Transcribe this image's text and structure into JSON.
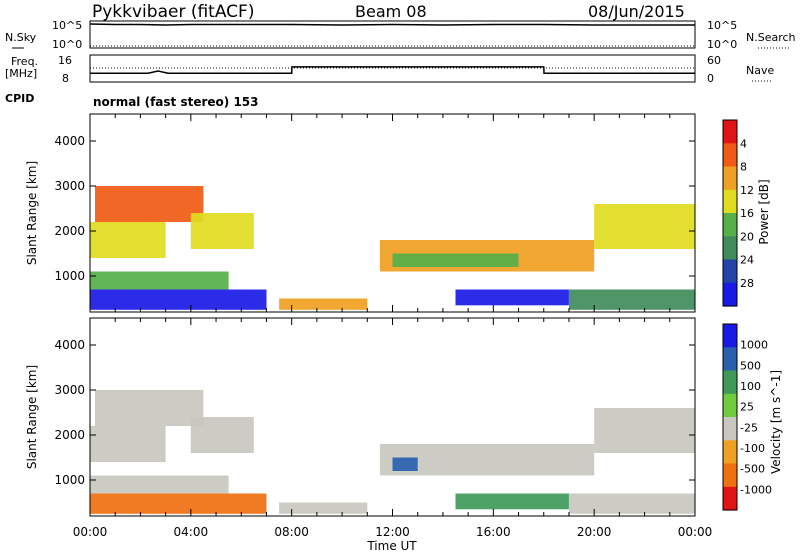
{
  "header": {
    "title": "Pykkvibaer (fitACF)",
    "beam": "Beam 08",
    "date": "08/Jun/2015"
  },
  "cpid_label": "CPID",
  "cpid_text": "normal (fast stereo) 153",
  "colors": {
    "scale": [
      "#1a1ae6",
      "#2244aa",
      "#3f8c5a",
      "#56b04a",
      "#e0dc1e",
      "#f0a020",
      "#f05a14",
      "#e01414"
    ]
  },
  "chart_data": [
    {
      "type": "line",
      "panel": "nsky",
      "left_labels": [
        "N.Sky"
      ],
      "right_labels": [
        "N.Search"
      ],
      "left_ticks": [
        "10^5",
        "10^0"
      ],
      "right_ticks": [
        "10^5",
        "10^0"
      ],
      "series": [
        {
          "name": "N.Sky",
          "x": [
            0,
            1,
            2,
            3,
            4,
            6,
            8,
            10,
            12,
            14,
            16,
            18,
            20,
            22,
            24
          ],
          "y": [
            4.6,
            4.5,
            4.5,
            4.4,
            4.5,
            4.5,
            4.5,
            4.4,
            4.5,
            4.4,
            4.5,
            4.5,
            4.4,
            4.4,
            4.4
          ]
        },
        {
          "name": "N.Search",
          "x": [
            0,
            4,
            8,
            12,
            16,
            20,
            24
          ],
          "y": [
            0.2,
            0.2,
            0.2,
            0.2,
            0.2,
            0.2,
            0.2
          ]
        }
      ]
    },
    {
      "type": "line",
      "panel": "freq",
      "left_labels": [
        "Freq.",
        "[MHz]"
      ],
      "right_labels": [
        "Nave"
      ],
      "left_ticks": [
        "16",
        "8"
      ],
      "right_ticks": [
        "60",
        "0"
      ],
      "series": [
        {
          "name": "Freq.",
          "x": [
            0,
            2.3,
            2.7,
            3.1,
            8,
            8.01,
            18,
            18.01,
            24
          ],
          "y": [
            10.5,
            10.5,
            11.2,
            10.5,
            10.5,
            12.5,
            12.5,
            10.5,
            10.5
          ]
        }
      ]
    },
    {
      "type": "heatmap",
      "panel": "power",
      "ylabel": "Slant Range [km]",
      "yticks": [
        1000,
        2000,
        3000,
        4000
      ],
      "ylim": [
        200,
        4600
      ],
      "xlim": [
        0,
        24
      ],
      "colorbar_label": "Power [dB]",
      "colorbar_ticks": [
        "4",
        "8",
        "12",
        "16",
        "20",
        "24",
        "28"
      ],
      "regions": [
        {
          "x": [
            0.0,
            7.0
          ],
          "y": [
            250,
            700
          ],
          "level": 7
        },
        {
          "x": [
            0.0,
            5.5
          ],
          "y": [
            700,
            1100
          ],
          "level": 4
        },
        {
          "x": [
            0.0,
            3.0
          ],
          "y": [
            1400,
            2200
          ],
          "level": 3
        },
        {
          "x": [
            0.2,
            4.5
          ],
          "y": [
            2200,
            3000
          ],
          "level": 1
        },
        {
          "x": [
            4.0,
            6.5
          ],
          "y": [
            1600,
            2400
          ],
          "level": 3
        },
        {
          "x": [
            7.5,
            11.0
          ],
          "y": [
            250,
            500
          ],
          "level": 2
        },
        {
          "x": [
            11.5,
            20.0
          ],
          "y": [
            1100,
            1800
          ],
          "level": 2
        },
        {
          "x": [
            12.0,
            17.0
          ],
          "y": [
            1200,
            1500
          ],
          "level": 4
        },
        {
          "x": [
            14.5,
            19.0
          ],
          "y": [
            350,
            700
          ],
          "level": 7
        },
        {
          "x": [
            19.0,
            24.0
          ],
          "y": [
            250,
            700
          ],
          "level": 5
        },
        {
          "x": [
            20.0,
            24.0
          ],
          "y": [
            1600,
            2600
          ],
          "level": 3
        }
      ]
    },
    {
      "type": "heatmap",
      "panel": "velocity",
      "ylabel": "Slant Range [km]",
      "yticks": [
        1000,
        2000,
        3000,
        4000
      ],
      "ylim": [
        200,
        4600
      ],
      "xlim": [
        0,
        24
      ],
      "xlabel": "Time UT",
      "xticks": [
        "00:00",
        "04:00",
        "08:00",
        "12:00",
        "16:00",
        "20:00",
        "00:00"
      ],
      "colorbar_label": "Velocity [m s^-1]",
      "colorbar_ticks": [
        "1000",
        "500",
        "100",
        "25",
        "-25",
        "-100",
        "-500",
        "-1000"
      ],
      "regions": [
        {
          "x": [
            0.0,
            7.0
          ],
          "y": [
            250,
            700
          ],
          "level": 6
        },
        {
          "x": [
            0.0,
            5.5
          ],
          "y": [
            700,
            1100
          ],
          "level": 4
        },
        {
          "x": [
            0.0,
            3.0
          ],
          "y": [
            1400,
            2200
          ],
          "level": 4
        },
        {
          "x": [
            0.2,
            4.5
          ],
          "y": [
            2200,
            3000
          ],
          "level": 4
        },
        {
          "x": [
            4.0,
            6.5
          ],
          "y": [
            1600,
            2400
          ],
          "level": 4
        },
        {
          "x": [
            7.5,
            11.0
          ],
          "y": [
            250,
            500
          ],
          "level": 4
        },
        {
          "x": [
            11.5,
            20.0
          ],
          "y": [
            1100,
            1800
          ],
          "level": 4
        },
        {
          "x": [
            12.0,
            13.0
          ],
          "y": [
            1200,
            1500
          ],
          "level": 1
        },
        {
          "x": [
            14.5,
            19.0
          ],
          "y": [
            350,
            700
          ],
          "level": 2
        },
        {
          "x": [
            19.0,
            24.0
          ],
          "y": [
            250,
            700
          ],
          "level": 4
        },
        {
          "x": [
            20.0,
            24.0
          ],
          "y": [
            1600,
            2600
          ],
          "level": 4
        }
      ]
    }
  ]
}
